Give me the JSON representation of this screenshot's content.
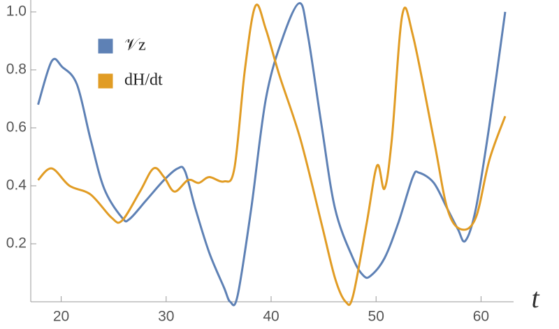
{
  "chart_data": {
    "type": "line",
    "x_label": "t",
    "xlim": [
      17.1,
      63.1
    ],
    "ylim": [
      0,
      1.041
    ],
    "xticks": [
      20,
      30,
      40,
      50,
      60
    ],
    "yticks": [
      0.2,
      0.4,
      0.6,
      0.8,
      {
        "value": 1,
        "label": "1.0"
      }
    ],
    "legend": "upper left",
    "series": [
      {
        "name": "𝒱z",
        "color": "#5e81b5",
        "x": [
          17.8,
          19.1,
          20.1,
          21.5,
          22.8,
          24.1,
          25.8,
          26.5,
          28.1,
          29.8,
          31.1,
          31.8,
          32.8,
          34.1,
          35.5,
          36.1,
          36.8,
          38.1,
          39.5,
          41.1,
          42.7,
          43.5,
          44.8,
          46.1,
          47.8,
          48.8,
          49.5,
          50.8,
          52.1,
          53.5,
          54.1,
          55.5,
          56.8,
          57.8,
          58.5,
          59.5,
          60.8,
          62.3
        ],
        "values": [
          0.68,
          0.83,
          0.81,
          0.75,
          0.56,
          0.39,
          0.29,
          0.285,
          0.35,
          0.42,
          0.46,
          0.45,
          0.32,
          0.17,
          0.05,
          0,
          0.02,
          0.32,
          0.7,
          0.91,
          1.03,
          0.92,
          0.61,
          0.32,
          0.15,
          0.09,
          0.09,
          0.15,
          0.27,
          0.43,
          0.445,
          0.41,
          0.32,
          0.25,
          0.21,
          0.32,
          0.61,
          1.0
        ]
      },
      {
        "name": "dH/dt",
        "color": "#e19c24",
        "x": [
          17.8,
          19.1,
          20.8,
          22.8,
          24.8,
          25.8,
          27.5,
          28.8,
          29.8,
          30.8,
          32.1,
          33.1,
          34.1,
          35.5,
          36.5,
          37.5,
          38.5,
          39.5,
          40.8,
          42.8,
          44.8,
          46.1,
          47.1,
          47.8,
          49.1,
          50.1,
          50.8,
          51.5,
          52.5,
          53.5,
          55.5,
          56.8,
          58.1,
          59.5,
          60.8,
          62.3
        ],
        "values": [
          0.42,
          0.46,
          0.4,
          0.37,
          0.29,
          0.28,
          0.38,
          0.46,
          0.43,
          0.38,
          0.42,
          0.41,
          0.43,
          0.415,
          0.46,
          0.8,
          1.02,
          0.94,
          0.78,
          0.56,
          0.27,
          0.08,
          0,
          0.02,
          0.27,
          0.47,
          0.39,
          0.56,
          0.99,
          0.92,
          0.56,
          0.32,
          0.25,
          0.29,
          0.49,
          0.64
        ]
      }
    ]
  }
}
